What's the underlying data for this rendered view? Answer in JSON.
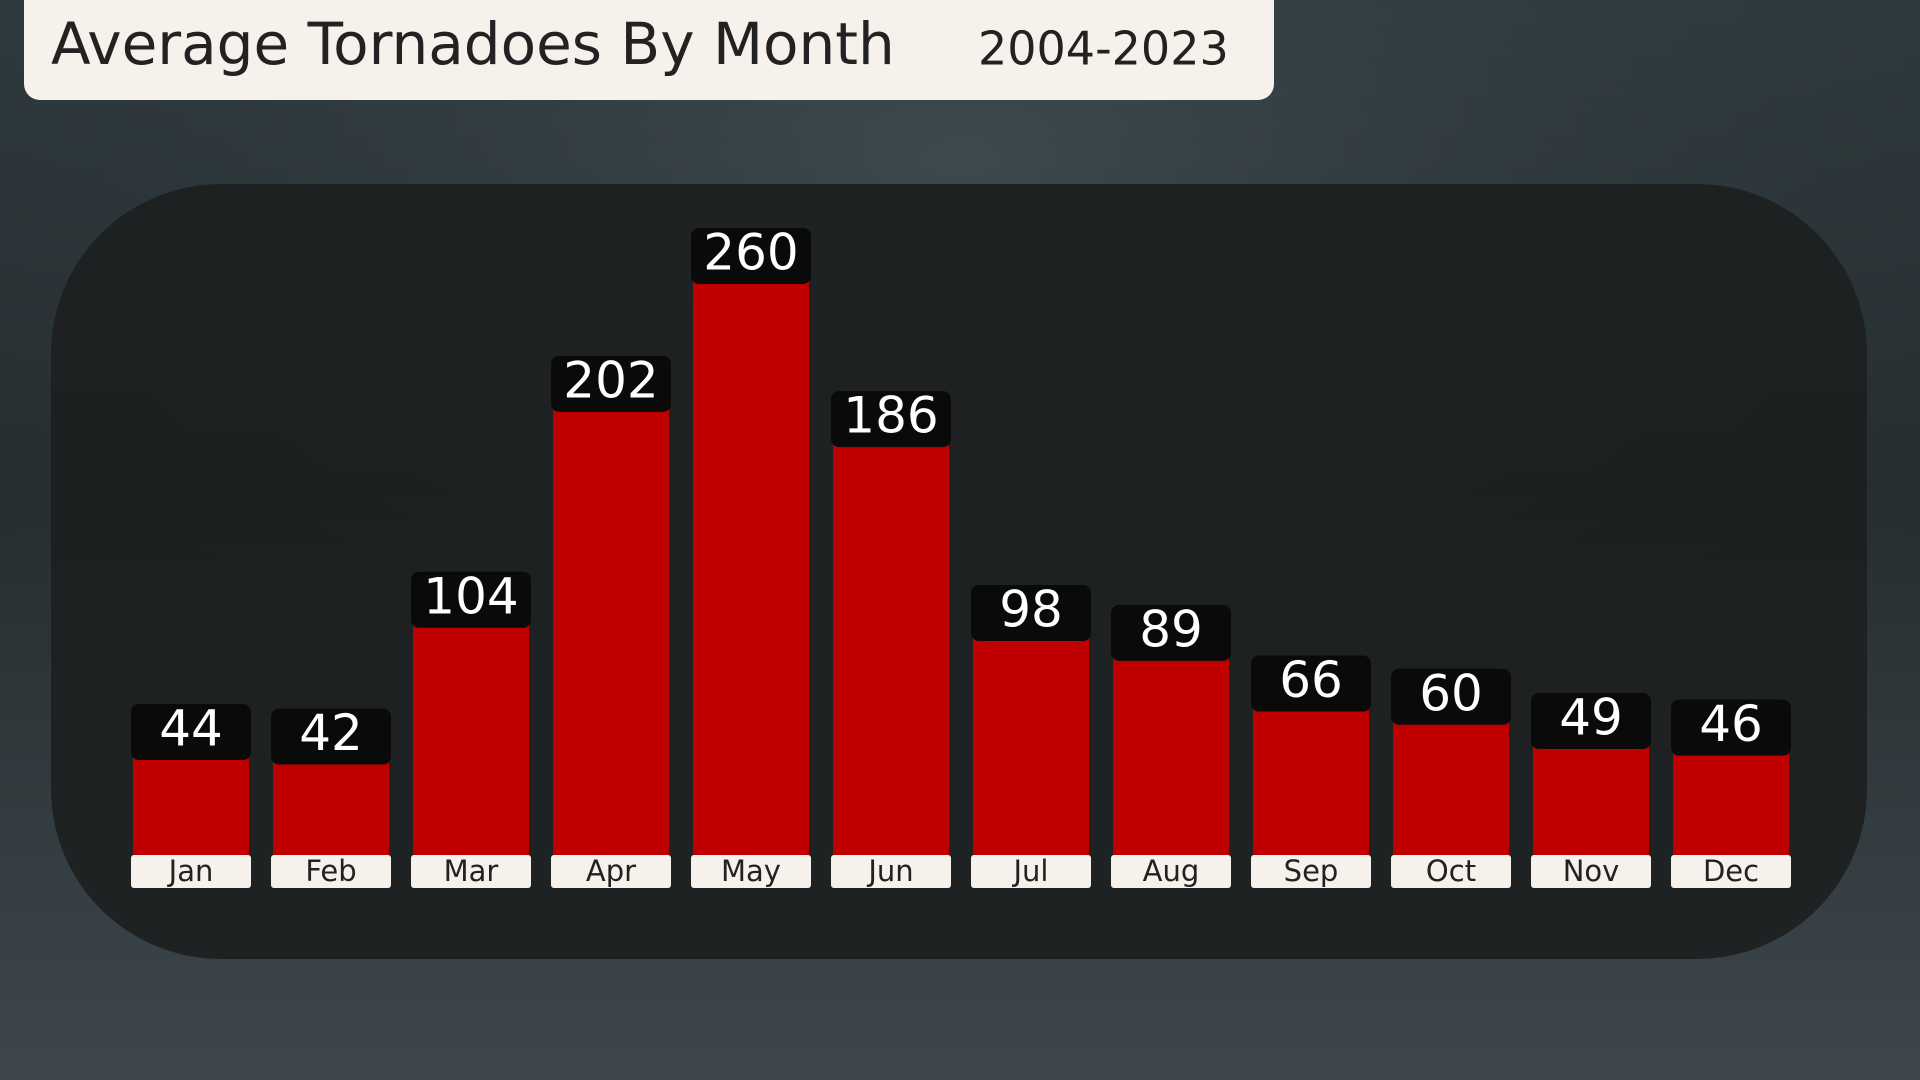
{
  "chart_data": {
    "type": "bar",
    "title": "Average Tornadoes By Month",
    "subtitle": "2004-2023",
    "categories": [
      "Jan",
      "Feb",
      "Mar",
      "Apr",
      "May",
      "Jun",
      "Jul",
      "Aug",
      "Sep",
      "Oct",
      "Nov",
      "Dec"
    ],
    "values": [
      44,
      42,
      104,
      202,
      260,
      186,
      98,
      89,
      66,
      60,
      49,
      46
    ],
    "color": "#c00000"
  }
}
